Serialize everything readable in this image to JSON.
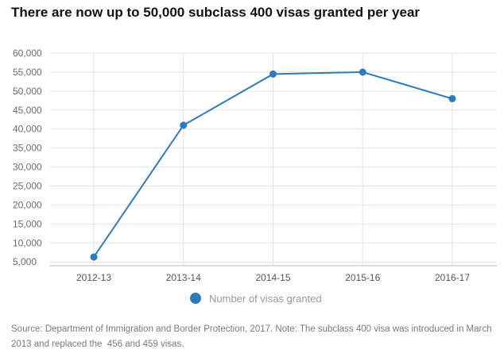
{
  "chart_data": {
    "type": "line",
    "title": "There are now up to 50,000 subclass 400 visas granted per year",
    "categories": [
      "2012-13",
      "2013-14",
      "2014-15",
      "2015-16",
      "2016-17"
    ],
    "series": [
      {
        "name": "Number of visas granted",
        "values": [
          6300,
          41000,
          54500,
          55000,
          48000
        ],
        "color": "#2b7bbf"
      }
    ],
    "yticks": [
      "5,000",
      "10,000",
      "15,000",
      "20,000",
      "25,000",
      "30,000",
      "35,000",
      "40,000",
      "45,000",
      "50,000",
      "55,000",
      "60,000"
    ],
    "ylim": [
      4000,
      60000
    ],
    "xlabel": "",
    "ylabel": "",
    "grid": true,
    "legend_position": "bottom-center"
  },
  "source_note": "Source: Department of Immigration and Border Protection, 2017. Note: The subclass 400 visa was introduced in March 2013 and replaced the  456 and 459 visas."
}
